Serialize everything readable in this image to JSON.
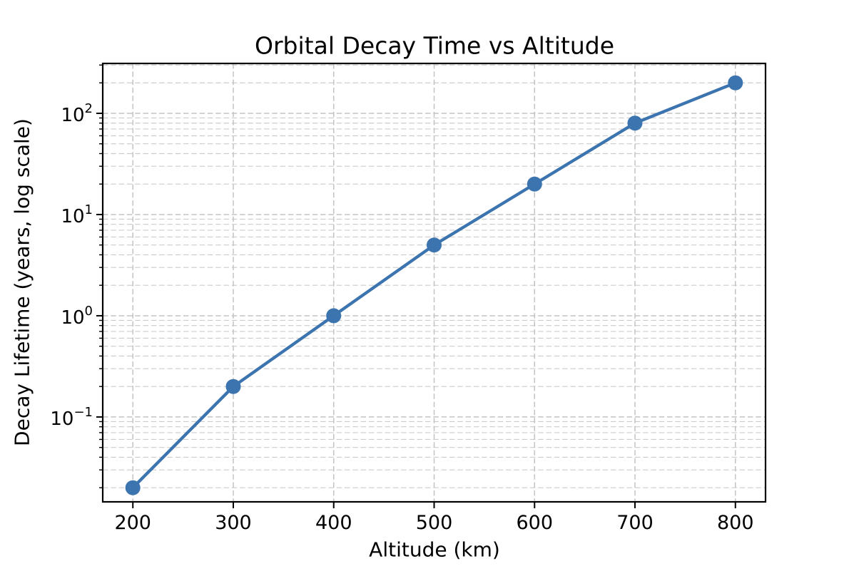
{
  "chart_data": {
    "type": "line",
    "title": "Orbital Decay Time vs Altitude",
    "xlabel": "Altitude (km)",
    "ylabel": "Decay Lifetime (years, log scale)",
    "x": [
      200,
      300,
      400,
      500,
      600,
      700,
      800
    ],
    "y": [
      0.02,
      0.2,
      1.0,
      5,
      20,
      80,
      200
    ],
    "series": [
      {
        "name": "decay-lifetime",
        "values": [
          0.02,
          0.2,
          1.0,
          5,
          20,
          80,
          200
        ]
      }
    ],
    "yscale": "log",
    "xlim": [
      170,
      830
    ],
    "ylim": [
      0.0145,
      311
    ],
    "xticks": [
      200,
      300,
      400,
      500,
      600,
      700,
      800
    ],
    "ytick_exponents": [
      -1,
      0,
      1,
      2
    ],
    "ytick_values": [
      0.1,
      1,
      10,
      100
    ],
    "ytick_labels": [
      "10⁻¹",
      "10⁰",
      "10¹",
      "10²"
    ],
    "grid": {
      "which": "both",
      "style": "dashed",
      "on": true
    },
    "legend": {
      "visible": false
    },
    "colors": {
      "line": "#3b74ae",
      "marker": "#3b74ae",
      "grid": "#c3c3c3",
      "axes": "#000000",
      "background": "#ffffff"
    },
    "marker": "circle"
  }
}
